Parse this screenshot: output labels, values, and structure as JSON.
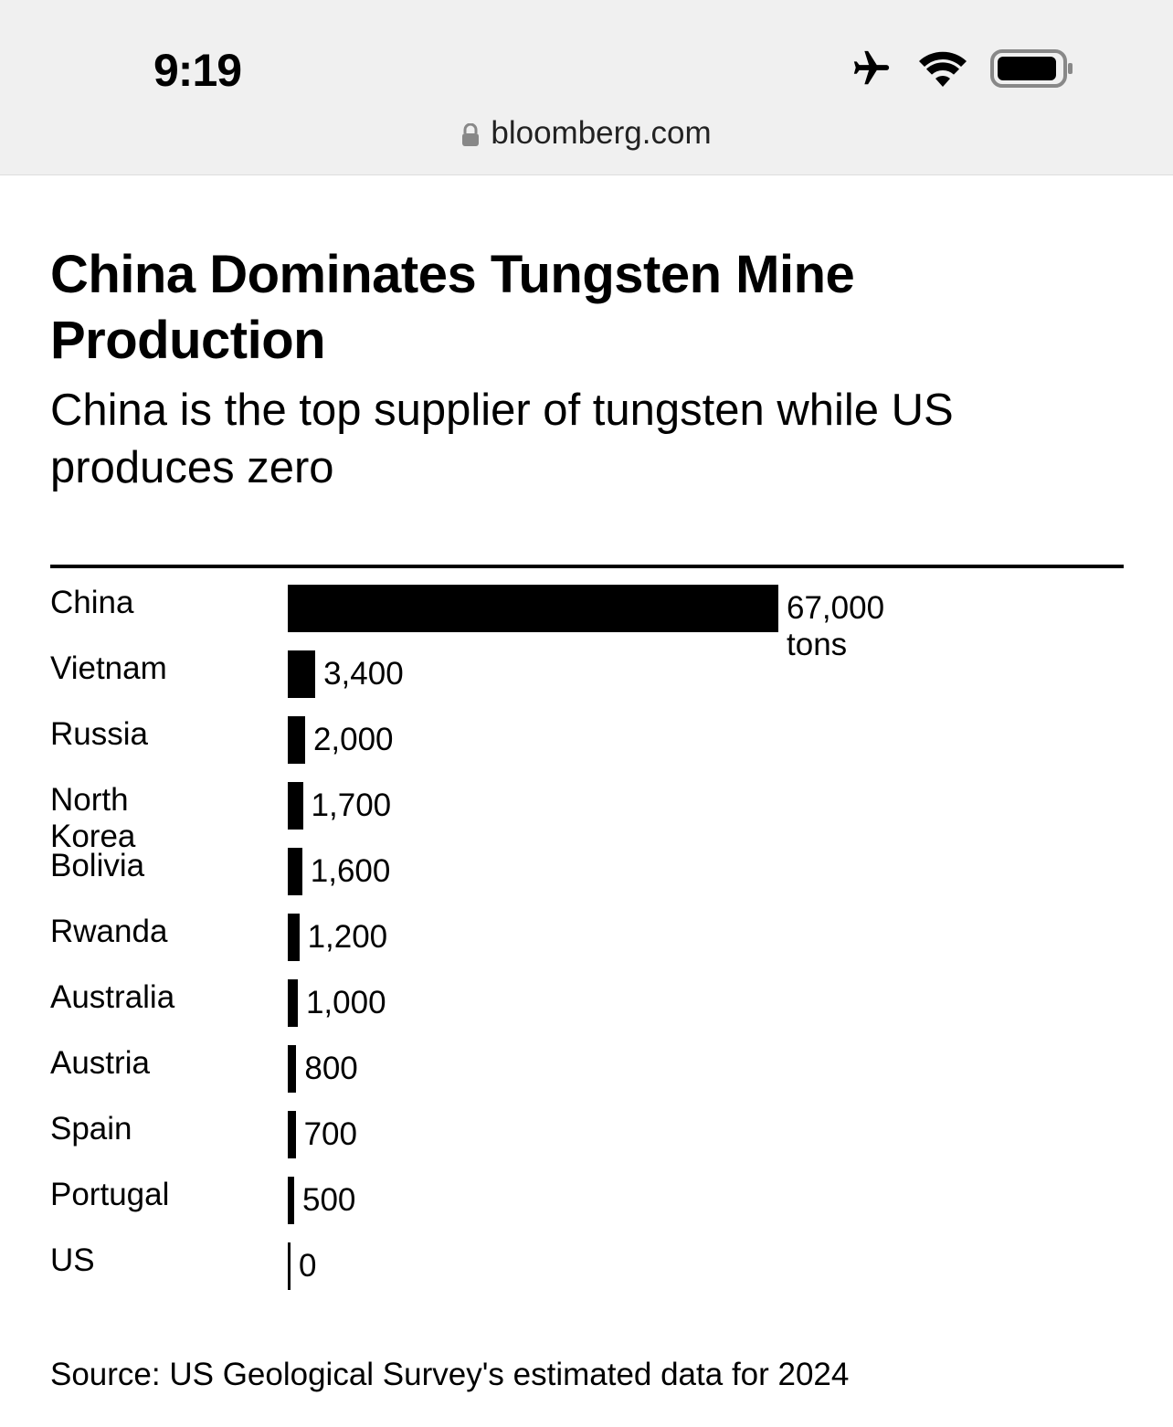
{
  "status_bar": {
    "time": "9:19",
    "icons": [
      "airplane-icon",
      "wifi-icon",
      "battery-icon"
    ],
    "url": "bloomberg.com"
  },
  "chart_data": {
    "type": "bar",
    "orientation": "horizontal",
    "title": "China Dominates Tungsten Mine Production",
    "subtitle": "China is the top supplier of tungsten while US produces zero",
    "categories": [
      "China",
      "Vietnam",
      "Russia",
      "North Korea",
      "Bolivia",
      "Rwanda",
      "Australia",
      "Austria",
      "Spain",
      "Portugal",
      "US"
    ],
    "values": [
      67000,
      3400,
      2000,
      1700,
      1600,
      1200,
      1000,
      800,
      700,
      500,
      0
    ],
    "value_labels": [
      "67,000 tons",
      "3,400",
      "2,000",
      "1,700",
      "1,600",
      "1,200",
      "1,000",
      "800",
      "700",
      "500",
      "0"
    ],
    "unit": "tons",
    "xlim": [
      0,
      67000
    ],
    "grid": false,
    "bar_color": "#000000",
    "source": "Source: US Geological Survey's estimated data for 2024"
  }
}
